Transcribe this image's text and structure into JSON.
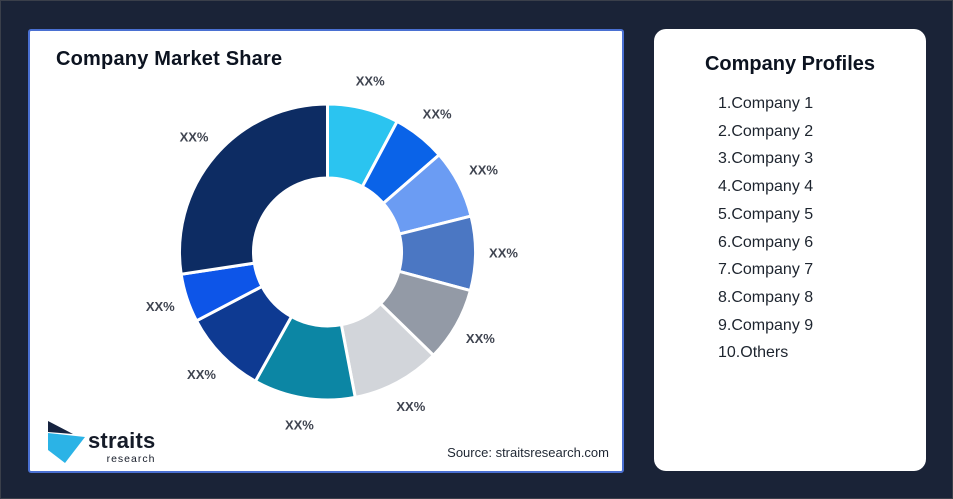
{
  "page": {
    "background_color": "#1a2337",
    "card_border_color": "#4a70d2"
  },
  "chart_card": {
    "title": "Company Market Share",
    "source": "Source: straitsresearch.com",
    "logo": {
      "brand": "straits",
      "sub": "research",
      "mark_dark": "#16233f",
      "mark_cyan": "#2bb3e6"
    }
  },
  "profiles_card": {
    "title": "Company Profiles",
    "items": [
      "1.Company 1",
      "2.Company 2",
      "3.Company 3",
      "4.Company 4",
      "5.Company 5",
      "6.Company 6",
      "7.Company 7",
      "8.Company 8",
      "9.Company 9",
      "10.Others"
    ]
  },
  "chart_data": {
    "type": "pie",
    "subtype": "donut",
    "title": "Company Market Share",
    "note": "All data labels are masked as XX% in the source image; slice values are percentages estimated from arc angles, clockwise from 12 o'clock.",
    "start_angle_deg": 0,
    "direction": "clockwise",
    "outer_radius": 148,
    "inner_radius": 74,
    "label_radius": 176,
    "legend_position": "none",
    "label_color": "#3f4450",
    "segments": [
      {
        "name": "Company 1",
        "label": "XX%",
        "value": 7.8,
        "color": "#2bc4f0"
      },
      {
        "name": "Company 2",
        "label": "XX%",
        "value": 5.8,
        "color": "#0a63e8"
      },
      {
        "name": "Company 3",
        "label": "XX%",
        "value": 7.5,
        "color": "#6b9cf3"
      },
      {
        "name": "Company 4",
        "label": "XX%",
        "value": 8.1,
        "color": "#4b77c3"
      },
      {
        "name": "Company 5",
        "label": "XX%",
        "value": 8.1,
        "color": "#939aa6"
      },
      {
        "name": "Company 6",
        "label": "XX%",
        "value": 9.7,
        "color": "#d2d5da"
      },
      {
        "name": "Company 7",
        "label": "XX%",
        "value": 11.1,
        "color": "#0c86a4"
      },
      {
        "name": "Company 8",
        "label": "XX%",
        "value": 9.2,
        "color": "#0e3a92"
      },
      {
        "name": "Company 9",
        "label": "XX%",
        "value": 5.3,
        "color": "#0d55e8"
      },
      {
        "name": "Others",
        "label": "XX%",
        "value": 27.4,
        "color": "#0d2c63"
      }
    ]
  }
}
